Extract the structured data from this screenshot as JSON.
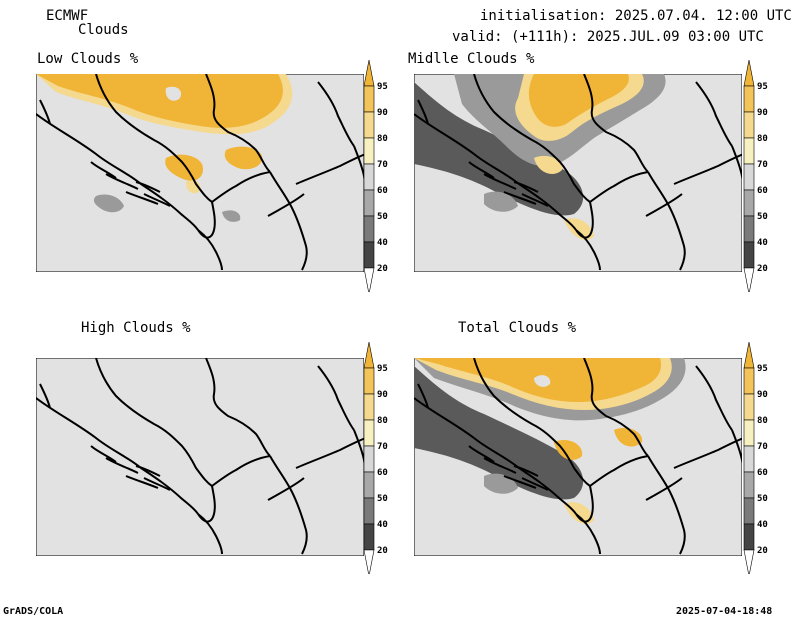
{
  "header": {
    "model": "ECMWF",
    "product": "Clouds",
    "initialisation": "initialisation: 2025.07.04. 12:00 UTC",
    "valid": "valid: (+111h): 2025.JUL.09 03:00 UTC"
  },
  "panels": {
    "low": {
      "title": "Low Clouds %"
    },
    "mid": {
      "title": "Midlle Clouds %"
    },
    "high": {
      "title": "High Clouds %"
    },
    "total": {
      "title": "Total Clouds %"
    }
  },
  "colorbar": {
    "levels": [
      "95",
      "90",
      "80",
      "70",
      "60",
      "50",
      "40",
      "20"
    ],
    "colors": [
      "#f0b436",
      "#f2c45a",
      "#f5d98e",
      "#f7f0c0",
      "#d8d8d8",
      "#a8a8a8",
      "#7a7a7a",
      "#444444",
      "#ffffff"
    ]
  },
  "colors": {
    "background": "#e2e2e2",
    "orange": "#f0b436",
    "light_orange": "#f5d98e",
    "gray_dark": "#5a5a5a",
    "gray_mid": "#9a9a9a"
  },
  "footer": {
    "left": "GrADS/COLA",
    "right": "2025-07-04-18:48"
  }
}
